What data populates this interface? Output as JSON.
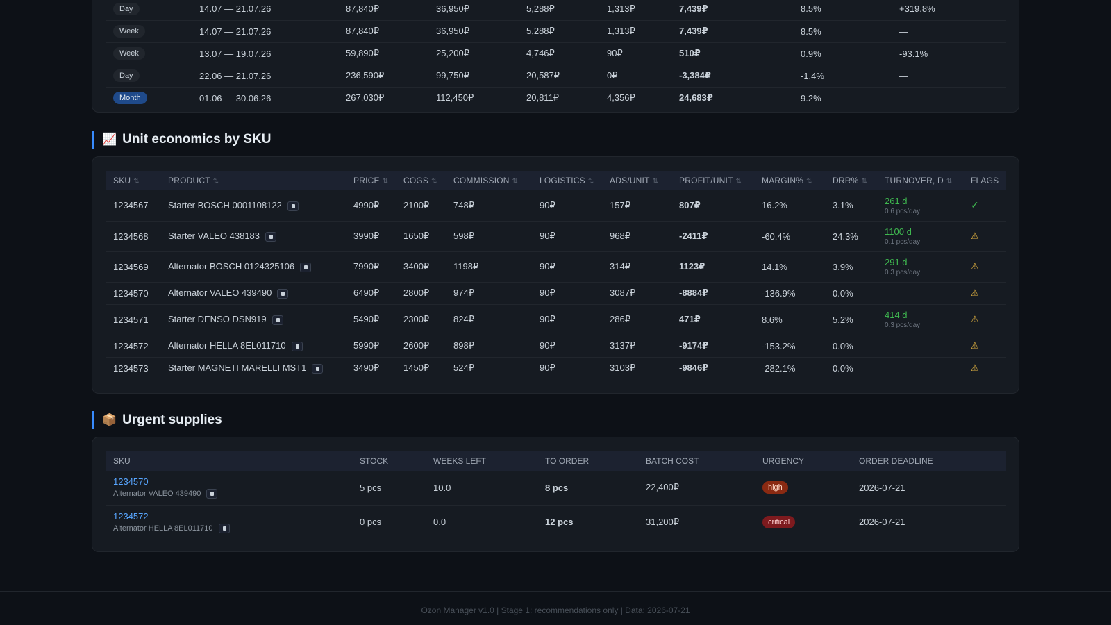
{
  "periods": {
    "rows": [
      {
        "type": "Day",
        "range": "14.07 — 21.07.26",
        "revenue": "87,840₽",
        "cogs": "36,950₽",
        "commission": "5,288₽",
        "ads": "1,313₽",
        "profit": "7,439₽",
        "profit_sign": "pos",
        "margin": "8.5%",
        "change": "+319.8%",
        "change_sign": "pos"
      },
      {
        "type": "Week",
        "range": "14.07 — 21.07.26",
        "revenue": "87,840₽",
        "cogs": "36,950₽",
        "commission": "5,288₽",
        "ads": "1,313₽",
        "profit": "7,439₽",
        "profit_sign": "pos",
        "margin": "8.5%",
        "change": "—",
        "change_sign": "none"
      },
      {
        "type": "Week",
        "range": "13.07 — 19.07.26",
        "revenue": "59,890₽",
        "cogs": "25,200₽",
        "commission": "4,746₽",
        "ads": "90₽",
        "profit": "510₽",
        "profit_sign": "pos",
        "margin": "0.9%",
        "change": "-93.1%",
        "change_sign": "neg"
      },
      {
        "type": "Day",
        "range": "22.06 — 21.07.26",
        "revenue": "236,590₽",
        "cogs": "99,750₽",
        "commission": "20,587₽",
        "ads": "0₽",
        "profit": "-3,384₽",
        "profit_sign": "neg",
        "margin": "-1.4%",
        "change": "—",
        "change_sign": "none"
      },
      {
        "type": "Month",
        "range": "01.06 — 30.06.26",
        "revenue": "267,030₽",
        "cogs": "112,450₽",
        "commission": "20,811₽",
        "ads": "4,356₽",
        "profit": "24,683₽",
        "profit_sign": "pos",
        "margin": "9.2%",
        "change": "—",
        "change_sign": "none"
      }
    ]
  },
  "unit_economics": {
    "title": "Unit economics by SKU",
    "icon": "chart-increasing-icon",
    "headers": [
      "SKU",
      "PRODUCT",
      "PRICE",
      "COGS",
      "COMMISSION",
      "LOGISTICS",
      "ADS/UNIT",
      "PROFIT/UNIT",
      "MARGIN%",
      "DRR%",
      "TURNOVER, D",
      "FLAGS"
    ],
    "rows": [
      {
        "sku": "1234567",
        "product": "Starter BOSCH 0001108122",
        "price": "4990₽",
        "cogs": "2100₽",
        "commission": "748₽",
        "logistics": "90₽",
        "ads": "157₽",
        "profit": "807₽",
        "profit_sign": "pos",
        "margin": "16.2%",
        "margin_sign": "pos",
        "drr": "3.1%",
        "drr_sign": "none",
        "turnover": "261 d",
        "turnover_sub": "0.6 pcs/day",
        "flag": "✓",
        "flag_type": "ok"
      },
      {
        "sku": "1234568",
        "product": "Starter VALEO 438183",
        "price": "3990₽",
        "cogs": "1650₽",
        "commission": "598₽",
        "logistics": "90₽",
        "ads": "968₽",
        "profit": "-2411₽",
        "profit_sign": "neg",
        "margin": "-60.4%",
        "margin_sign": "warn",
        "drr": "24.3%",
        "drr_sign": "neg",
        "turnover": "1100 d",
        "turnover_sub": "0.1 pcs/day",
        "flag": "⚠",
        "flag_type": "warn"
      },
      {
        "sku": "1234569",
        "product": "Alternator BOSCH 0124325106",
        "price": "7990₽",
        "cogs": "3400₽",
        "commission": "1198₽",
        "logistics": "90₽",
        "ads": "314₽",
        "profit": "1123₽",
        "profit_sign": "pos",
        "margin": "14.1%",
        "margin_sign": "warn",
        "drr": "3.9%",
        "drr_sign": "none",
        "turnover": "291 d",
        "turnover_sub": "0.3 pcs/day",
        "flag": "⚠",
        "flag_type": "warn"
      },
      {
        "sku": "1234570",
        "product": "Alternator VALEO 439490",
        "price": "6490₽",
        "cogs": "2800₽",
        "commission": "974₽",
        "logistics": "90₽",
        "ads": "3087₽",
        "profit": "-8884₽",
        "profit_sign": "neg",
        "margin": "-136.9%",
        "margin_sign": "warn",
        "drr": "0.0%",
        "drr_sign": "none",
        "turnover": "—",
        "turnover_sub": "",
        "flag": "⚠",
        "flag_type": "warn"
      },
      {
        "sku": "1234571",
        "product": "Starter DENSO DSN919",
        "price": "5490₽",
        "cogs": "2300₽",
        "commission": "824₽",
        "logistics": "90₽",
        "ads": "286₽",
        "profit": "471₽",
        "profit_sign": "pos",
        "margin": "8.6%",
        "margin_sign": "warn",
        "drr": "5.2%",
        "drr_sign": "none",
        "turnover": "414 d",
        "turnover_sub": "0.3 pcs/day",
        "flag": "⚠",
        "flag_type": "warn"
      },
      {
        "sku": "1234572",
        "product": "Alternator HELLA 8EL011710",
        "price": "5990₽",
        "cogs": "2600₽",
        "commission": "898₽",
        "logistics": "90₽",
        "ads": "3137₽",
        "profit": "-9174₽",
        "profit_sign": "neg",
        "margin": "-153.2%",
        "margin_sign": "warn",
        "drr": "0.0%",
        "drr_sign": "none",
        "turnover": "—",
        "turnover_sub": "",
        "flag": "⚠",
        "flag_type": "warn"
      },
      {
        "sku": "1234573",
        "product": "Starter MAGNETI MARELLI MST1",
        "price": "3490₽",
        "cogs": "1450₽",
        "commission": "524₽",
        "logistics": "90₽",
        "ads": "3103₽",
        "profit": "-9846₽",
        "profit_sign": "neg",
        "margin": "-282.1%",
        "margin_sign": "warn",
        "drr": "0.0%",
        "drr_sign": "none",
        "turnover": "—",
        "turnover_sub": "",
        "flag": "⚠",
        "flag_type": "warn"
      }
    ]
  },
  "supplies": {
    "title": "Urgent supplies",
    "icon": "package-icon",
    "headers": [
      "SKU",
      "STOCK",
      "WEEKS LEFT",
      "TO ORDER",
      "BATCH COST",
      "URGENCY",
      "ORDER DEADLINE"
    ],
    "rows": [
      {
        "sku": "1234570",
        "product": "Alternator VALEO 439490",
        "stock": "5 pcs",
        "weeks_left": "10.0",
        "to_order": "8 pcs",
        "batch_cost": "22,400₽",
        "urgency": "high",
        "deadline": "2026-07-21"
      },
      {
        "sku": "1234572",
        "product": "Alternator HELLA 8EL011710",
        "stock": "0 pcs",
        "weeks_left": "0.0",
        "to_order": "12 pcs",
        "batch_cost": "31,200₽",
        "urgency": "critical",
        "deadline": "2026-07-21"
      }
    ]
  },
  "footer": {
    "text": "Ozon Manager v1.0 | Stage 1: recommendations only | Data: 2026-07-21"
  },
  "colors": {
    "background": "#0d1117",
    "card": "#161b22",
    "accent": "#388bfd",
    "positive": "#3fb950",
    "negative": "#f85149",
    "warning": "#f0a030"
  }
}
